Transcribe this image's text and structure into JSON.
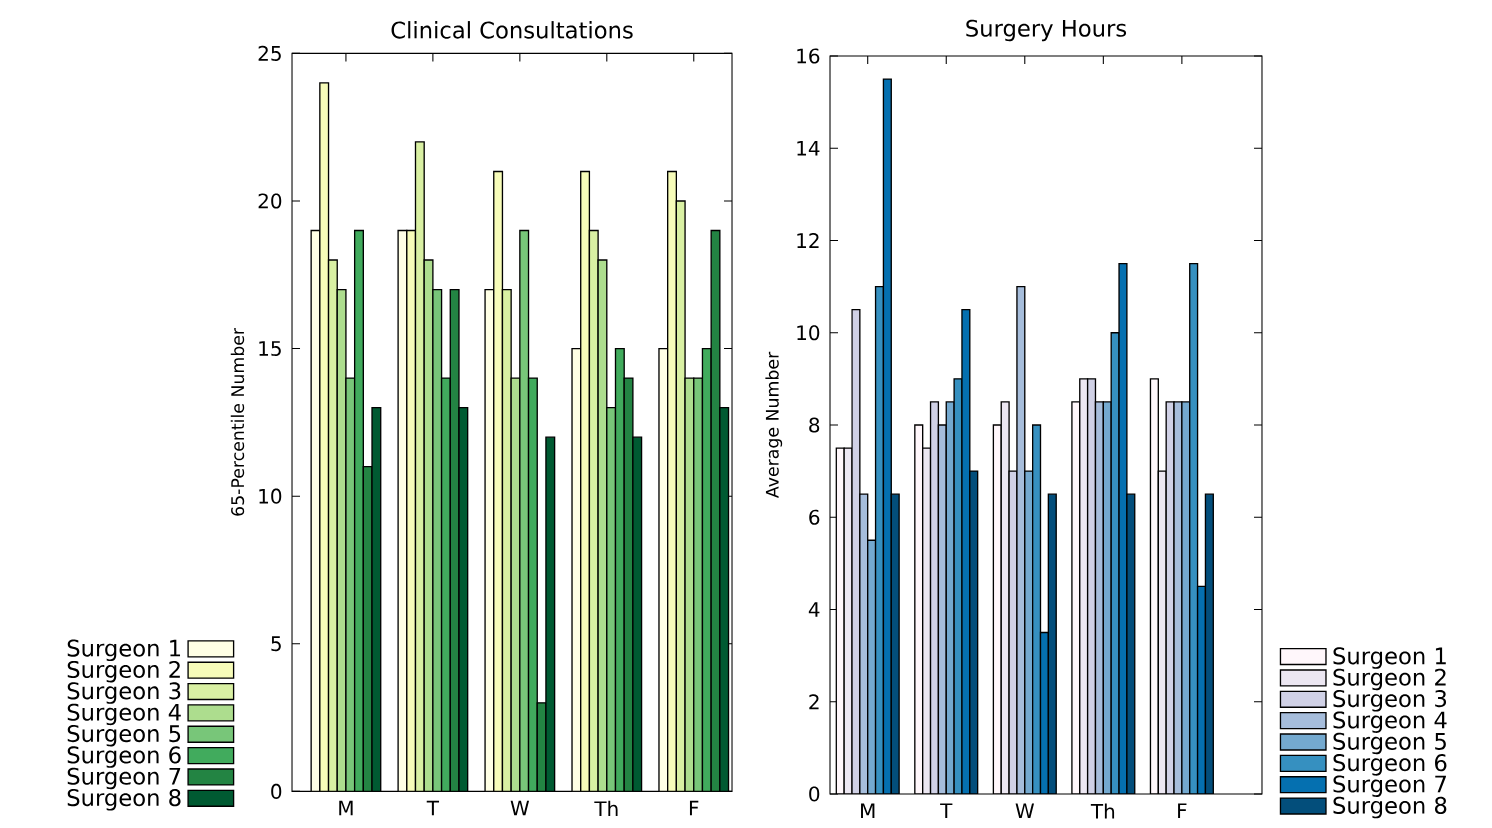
{
  "chart_data": [
    {
      "type": "bar",
      "title": "Clinical  Consultations",
      "ylabel": "65-Percentile Number",
      "categories": [
        "M",
        "T",
        "W",
        "Th",
        "F"
      ],
      "series": [
        {
          "name": "Surgeon 1",
          "color": "#ffffe5",
          "values": [
            19,
            19,
            17,
            15,
            15
          ]
        },
        {
          "name": "Surgeon 2",
          "color": "#f7fcb9",
          "values": [
            24,
            19,
            21,
            21,
            21
          ]
        },
        {
          "name": "Surgeon 3",
          "color": "#d9f0a3",
          "values": [
            18,
            22,
            17,
            19,
            20
          ]
        },
        {
          "name": "Surgeon 4",
          "color": "#addd8e",
          "values": [
            17,
            18,
            14,
            18,
            14
          ]
        },
        {
          "name": "Surgeon 5",
          "color": "#78c679",
          "values": [
            14,
            17,
            19,
            13,
            14
          ]
        },
        {
          "name": "Surgeon 6",
          "color": "#41ab5d",
          "values": [
            19,
            14,
            14,
            15,
            15
          ]
        },
        {
          "name": "Surgeon 7",
          "color": "#238443",
          "values": [
            11,
            17,
            3,
            14,
            19
          ]
        },
        {
          "name": "Surgeon 8",
          "color": "#005a32",
          "values": [
            13,
            13,
            12,
            12,
            13
          ]
        }
      ],
      "ylim": [
        0,
        25
      ],
      "yticks": [
        0,
        5,
        10,
        15,
        20,
        25
      ],
      "legend": "bottom left",
      "grid": false
    },
    {
      "type": "bar",
      "title": "Surgery Hours",
      "ylabel": "Average Number",
      "categories": [
        "M",
        "T",
        "W",
        "Th",
        "F"
      ],
      "series": [
        {
          "name": "Surgeon 1",
          "color": "#fff7fb",
          "values": [
            7.5,
            8,
            8,
            8.5,
            9
          ]
        },
        {
          "name": "Surgeon 2",
          "color": "#ece7f2",
          "values": [
            7.5,
            7.5,
            8.5,
            9,
            7
          ]
        },
        {
          "name": "Surgeon 3",
          "color": "#d0d1e6",
          "values": [
            10.5,
            8.5,
            7,
            9,
            8.5
          ]
        },
        {
          "name": "Surgeon 4",
          "color": "#a6bddb",
          "values": [
            6.5,
            8,
            11,
            8.5,
            8.5
          ]
        },
        {
          "name": "Surgeon 5",
          "color": "#74a9cf",
          "values": [
            5.5,
            8.5,
            7,
            8.5,
            8.5
          ]
        },
        {
          "name": "Surgeon 6",
          "color": "#3690c0",
          "values": [
            11,
            9,
            8,
            10,
            11.5
          ]
        },
        {
          "name": "Surgeon 7",
          "color": "#0570b0",
          "values": [
            15.5,
            10.5,
            3.5,
            11.5,
            4.5
          ]
        },
        {
          "name": "Surgeon 8",
          "color": "#034e7b",
          "values": [
            6.5,
            7,
            6.5,
            6.5,
            6.5
          ]
        }
      ],
      "ylim": [
        0,
        16
      ],
      "yticks": [
        0,
        2,
        4,
        6,
        8,
        10,
        12,
        14,
        16
      ],
      "legend": "bottom right",
      "grid": false
    }
  ]
}
